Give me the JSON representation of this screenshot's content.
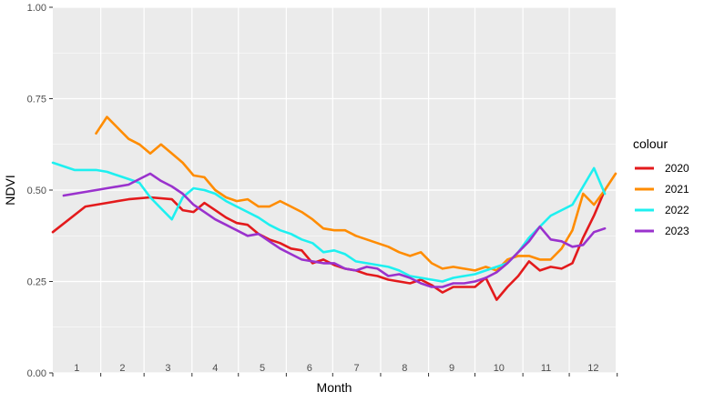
{
  "chart_data": {
    "type": "line",
    "xlabel": "Month",
    "ylabel": "NDVI",
    "ylim": [
      0,
      1
    ],
    "y_ticks": [
      "0.00",
      "0.25",
      "0.50",
      "0.75",
      "1.00"
    ],
    "y_tick_values": [
      0,
      0.25,
      0.5,
      0.75,
      1
    ],
    "xlim": [
      1,
      53
    ],
    "x_unit": "week of year",
    "month_labels": [
      "1",
      "2",
      "3",
      "4",
      "5",
      "6",
      "7",
      "8",
      "9",
      "10",
      "11",
      "12"
    ],
    "grid": true,
    "legend": {
      "title": "colour",
      "position": "right"
    },
    "series": [
      {
        "name": "2020",
        "color": "#e31a1c",
        "x": [
          1,
          4,
          6,
          8,
          10,
          12,
          13,
          14,
          15,
          16,
          17,
          18,
          19,
          20,
          21,
          22,
          23,
          24,
          25,
          26,
          27,
          28,
          29,
          30,
          31,
          32,
          33,
          34,
          35,
          36,
          37,
          38,
          39,
          40,
          41,
          42,
          43,
          44,
          45,
          46,
          47,
          48,
          49,
          50,
          51,
          52
        ],
        "y": [
          0.385,
          0.455,
          0.465,
          0.475,
          0.48,
          0.475,
          0.445,
          0.44,
          0.465,
          0.445,
          0.425,
          0.41,
          0.405,
          0.38,
          0.365,
          0.355,
          0.34,
          0.335,
          0.3,
          0.31,
          0.295,
          0.285,
          0.28,
          0.27,
          0.265,
          0.255,
          0.25,
          0.245,
          0.255,
          0.24,
          0.22,
          0.235,
          0.235,
          0.235,
          0.26,
          0.2,
          0.235,
          0.265,
          0.305,
          0.28,
          0.29,
          0.285,
          0.3,
          0.37,
          0.43,
          0.5
        ]
      },
      {
        "name": "2021",
        "color": "#ff8c00",
        "x": [
          5,
          6,
          8,
          9,
          10,
          11,
          12,
          13,
          14,
          15,
          16,
          17,
          18,
          19,
          20,
          21,
          22,
          23,
          24,
          25,
          26,
          27,
          28,
          29,
          30,
          31,
          32,
          33,
          34,
          35,
          36,
          37,
          38,
          39,
          40,
          41,
          42,
          43,
          44,
          45,
          46,
          47,
          48,
          49,
          50,
          51,
          52,
          53
        ],
        "y": [
          0.655,
          0.7,
          0.64,
          0.625,
          0.6,
          0.625,
          0.6,
          0.575,
          0.54,
          0.535,
          0.5,
          0.48,
          0.47,
          0.475,
          0.455,
          0.455,
          0.47,
          0.455,
          0.44,
          0.42,
          0.395,
          0.39,
          0.39,
          0.375,
          0.365,
          0.355,
          0.345,
          0.33,
          0.32,
          0.33,
          0.3,
          0.285,
          0.29,
          0.285,
          0.28,
          0.29,
          0.28,
          0.31,
          0.32,
          0.32,
          0.31,
          0.31,
          0.34,
          0.39,
          0.49,
          0.46,
          0.5,
          0.545
        ]
      },
      {
        "name": "2022",
        "color": "#1ef0f0",
        "x": [
          1,
          3,
          5,
          6,
          8,
          9,
          10,
          11,
          12,
          13,
          14,
          15,
          16,
          17,
          18,
          19,
          20,
          21,
          22,
          23,
          24,
          25,
          26,
          27,
          28,
          29,
          30,
          31,
          32,
          33,
          34,
          35,
          36,
          37,
          38,
          39,
          40,
          41,
          42,
          43,
          44,
          45,
          46,
          47,
          48,
          49,
          50,
          51,
          52
        ],
        "y": [
          0.575,
          0.555,
          0.555,
          0.55,
          0.53,
          0.52,
          0.48,
          0.45,
          0.42,
          0.48,
          0.505,
          0.5,
          0.49,
          0.47,
          0.455,
          0.44,
          0.425,
          0.405,
          0.39,
          0.38,
          0.365,
          0.355,
          0.33,
          0.335,
          0.325,
          0.305,
          0.3,
          0.295,
          0.29,
          0.28,
          0.265,
          0.26,
          0.255,
          0.25,
          0.26,
          0.265,
          0.27,
          0.28,
          0.29,
          0.3,
          0.33,
          0.37,
          0.4,
          0.43,
          0.445,
          0.46,
          0.51,
          0.56,
          0.49
        ]
      },
      {
        "name": "2023",
        "color": "#9a32cd",
        "x": [
          2,
          4,
          6,
          8,
          9,
          10,
          11,
          12,
          13,
          14,
          15,
          16,
          17,
          18,
          19,
          20,
          21,
          22,
          23,
          24,
          25,
          26,
          27,
          28,
          29,
          30,
          31,
          32,
          33,
          34,
          35,
          36,
          37,
          38,
          39,
          40,
          41,
          42,
          43,
          44,
          45,
          46,
          47,
          48,
          49,
          50,
          51,
          52
        ],
        "y": [
          0.485,
          0.495,
          0.505,
          0.515,
          0.53,
          0.545,
          0.525,
          0.51,
          0.49,
          0.46,
          0.44,
          0.42,
          0.405,
          0.39,
          0.375,
          0.38,
          0.36,
          0.34,
          0.325,
          0.31,
          0.305,
          0.3,
          0.3,
          0.285,
          0.28,
          0.29,
          0.285,
          0.265,
          0.27,
          0.26,
          0.245,
          0.235,
          0.235,
          0.245,
          0.245,
          0.25,
          0.26,
          0.275,
          0.3,
          0.33,
          0.36,
          0.4,
          0.365,
          0.36,
          0.345,
          0.35,
          0.385,
          0.395
        ]
      }
    ]
  }
}
